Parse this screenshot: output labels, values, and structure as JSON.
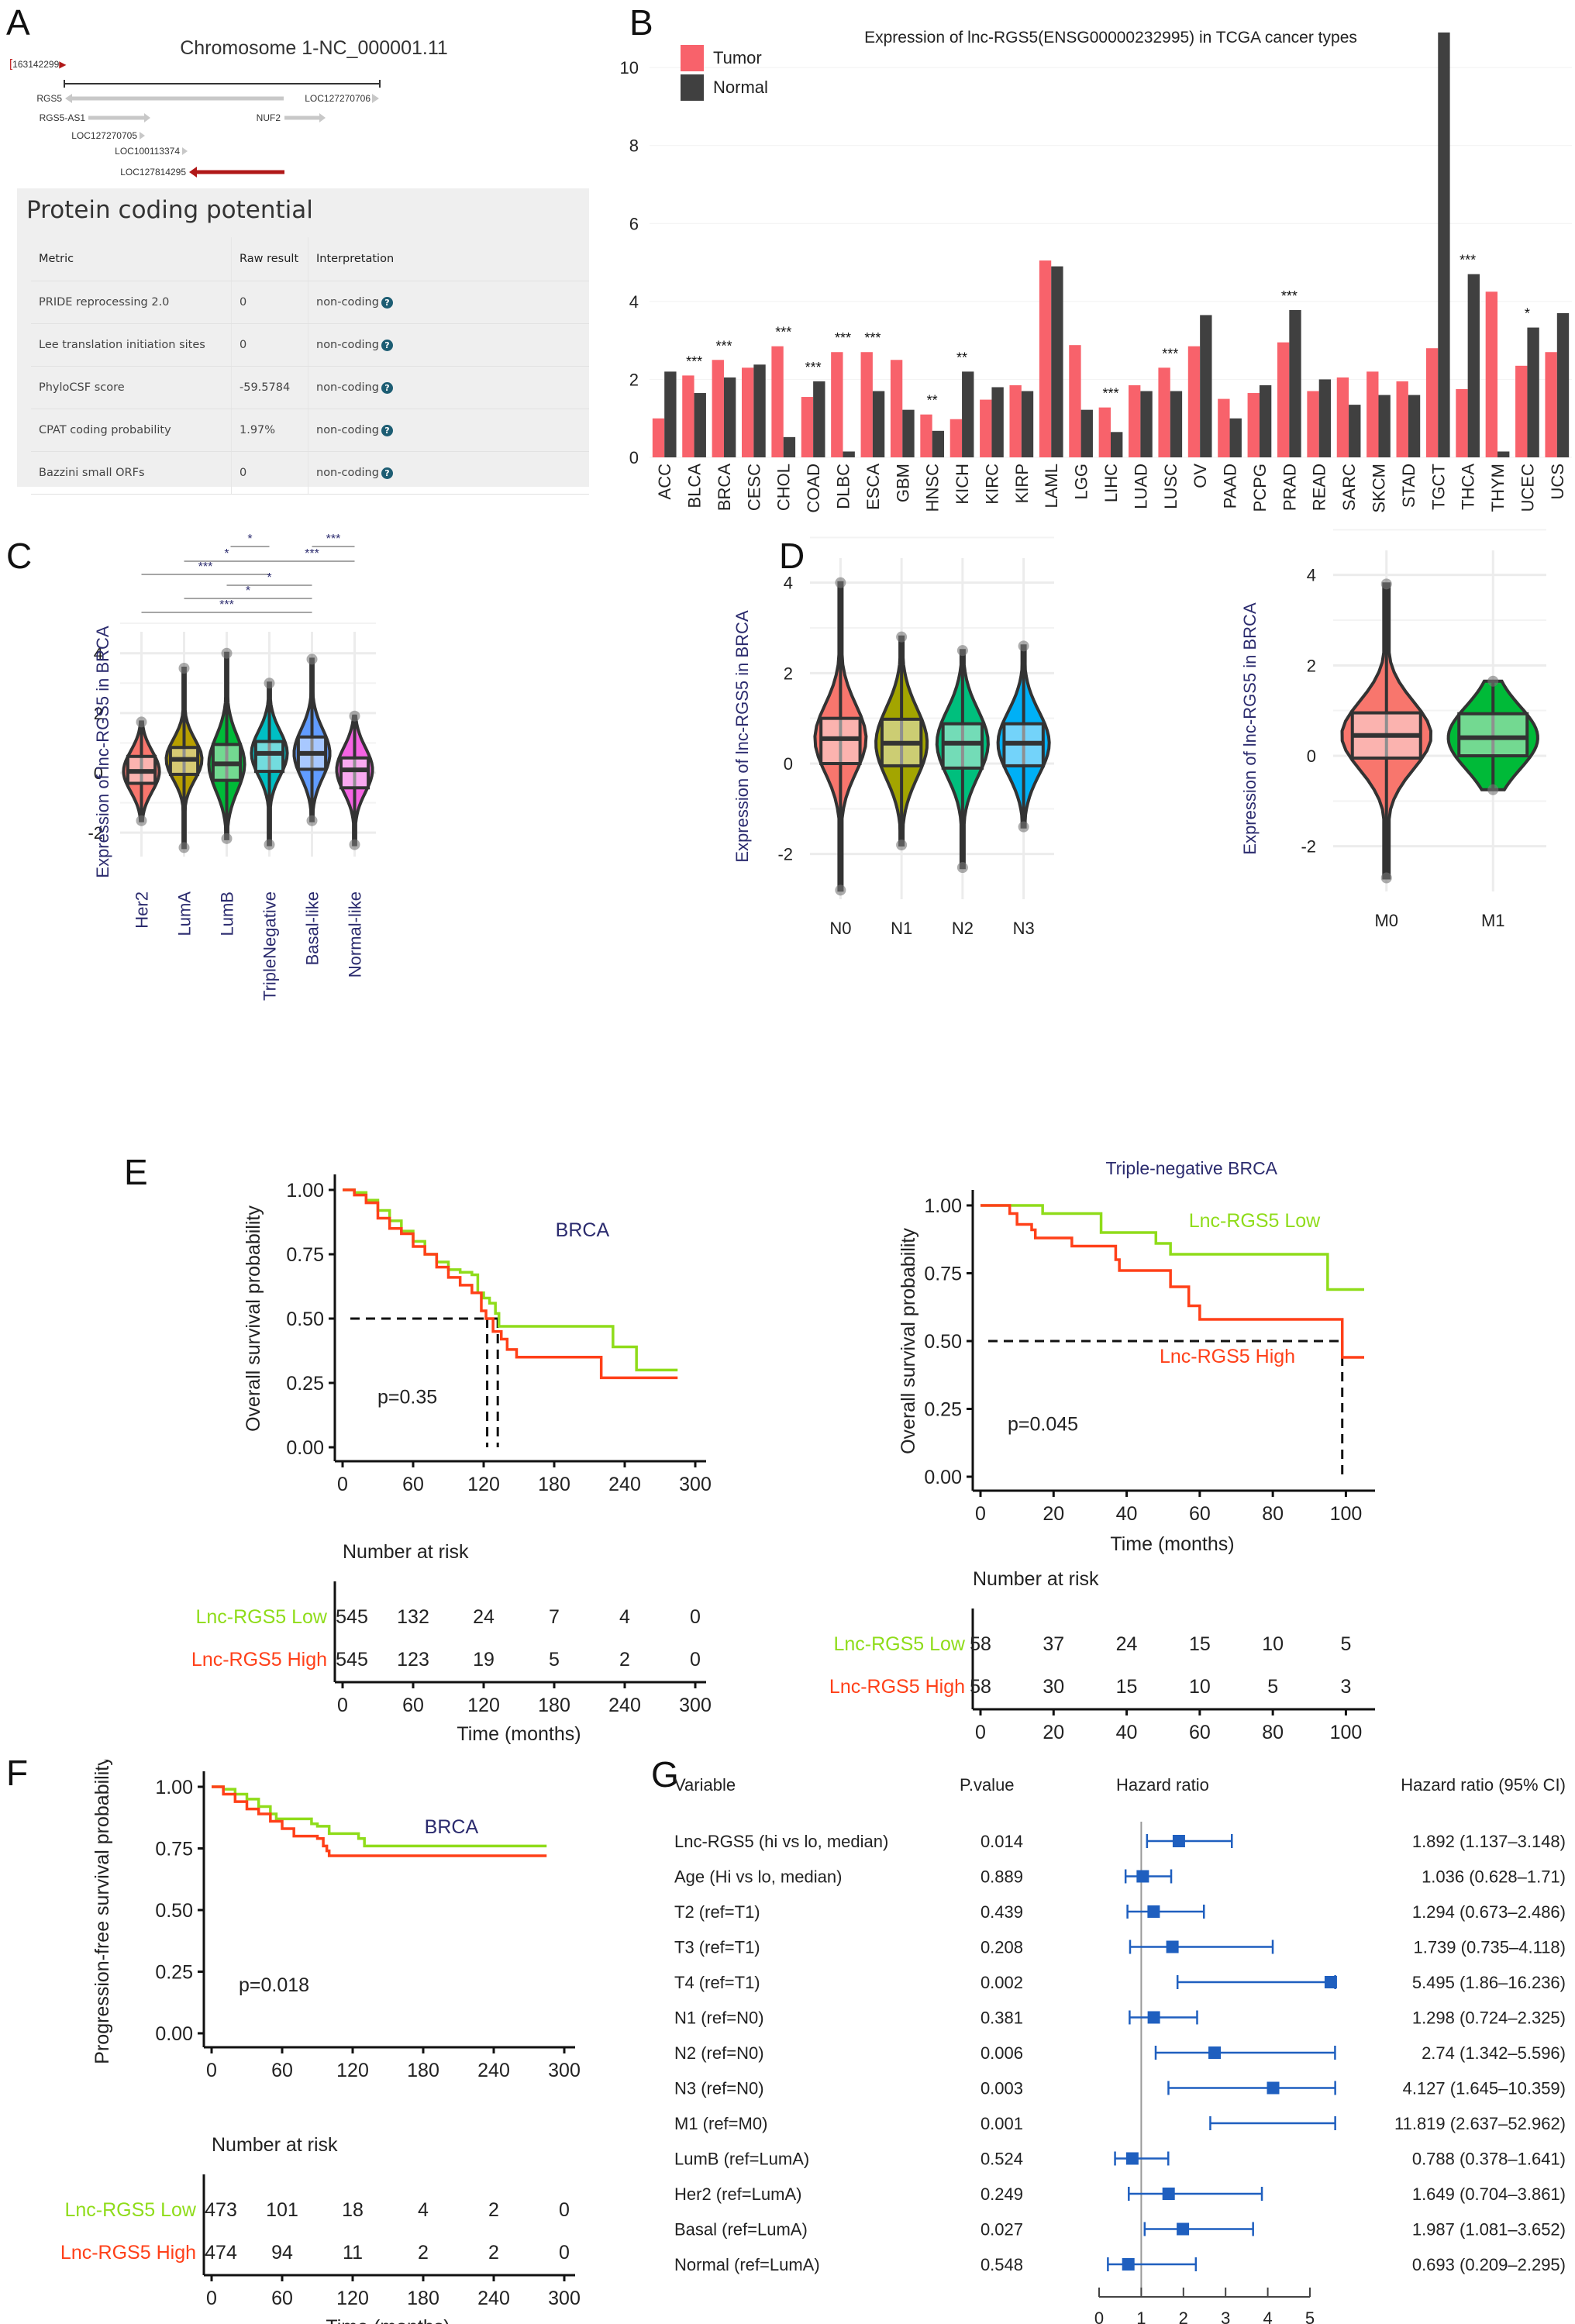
{
  "panels": {
    "A": {
      "letter": "A",
      "chromosome_title": "Chromosome 1-NC_000001.11",
      "start_coord": "163142299",
      "genes": [
        {
          "name": "RGS5",
          "strand": "-",
          "highlight": false
        },
        {
          "name": "LOC127270706",
          "strand": "+",
          "highlight": false
        },
        {
          "name": "RGS5-AS1",
          "strand": "+",
          "highlight": false
        },
        {
          "name": "NUF2",
          "strand": "+",
          "highlight": false
        },
        {
          "name": "LOC127270705",
          "strand": "+",
          "highlight": false
        },
        {
          "name": "LOC100113374",
          "strand": "+",
          "highlight": false
        },
        {
          "name": "LOC127814295",
          "strand": "-",
          "highlight": true
        }
      ],
      "table": {
        "title": "Protein coding potential",
        "headers": [
          "Metric",
          "Raw result",
          "Interpretation"
        ],
        "rows": [
          {
            "metric": "PRIDE reprocessing 2.0",
            "raw": "0",
            "interp": "non-coding"
          },
          {
            "metric": "Lee translation initiation sites",
            "raw": "0",
            "interp": "non-coding"
          },
          {
            "metric": "PhyloCSF score",
            "raw": "-59.5784",
            "interp": "non-coding"
          },
          {
            "metric": "CPAT coding probability",
            "raw": "1.97%",
            "interp": "non-coding"
          },
          {
            "metric": "Bazzini small ORFs",
            "raw": "0",
            "interp": "non-coding"
          }
        ],
        "help_icon": "?"
      }
    },
    "B": {
      "letter": "B"
    },
    "C": {
      "letter": "C"
    },
    "D": {
      "letter": "D"
    },
    "E": {
      "letter": "E"
    },
    "F": {
      "letter": "F"
    },
    "G": {
      "letter": "G"
    }
  },
  "colors": {
    "tumor": "#f8626b",
    "normal": "#404040",
    "km_low": "#8fdc1a",
    "km_high": "#ff4019",
    "title_blue": "#2b2b6e",
    "forest_blue": "#1f5fbf",
    "gene_red": "#b01818"
  },
  "chart_data": [
    {
      "id": "B",
      "type": "bar",
      "title": "Expression of lnc-RGS5(ENSG00000232995) in TCGA cancer types",
      "xlabel": "",
      "ylabel": "",
      "ylim": [
        0,
        10.5
      ],
      "yticks": [
        0,
        2,
        4,
        6,
        8,
        10
      ],
      "legend": {
        "position": "top-left",
        "entries": [
          "Tumor",
          "Normal"
        ]
      },
      "categories": [
        "ACC",
        "BLCA",
        "BRCA",
        "CESC",
        "CHOL",
        "COAD",
        "DLBC",
        "ESCA",
        "GBM",
        "HNSC",
        "KICH",
        "KIRC",
        "KIRP",
        "LAML",
        "LGG",
        "LIHC",
        "LUAD",
        "LUSC",
        "OV",
        "PAAD",
        "PCPG",
        "PRAD",
        "READ",
        "SARC",
        "SKCM",
        "STAD",
        "TGCT",
        "THCA",
        "THYM",
        "UCEC",
        "UCS"
      ],
      "series": [
        {
          "name": "Tumor",
          "values": [
            1.0,
            2.1,
            2.5,
            2.3,
            2.85,
            1.55,
            2.7,
            2.7,
            2.5,
            1.1,
            0.98,
            1.48,
            1.85,
            5.05,
            2.88,
            1.28,
            1.85,
            2.3,
            2.85,
            1.5,
            1.65,
            2.95,
            1.7,
            2.05,
            2.2,
            1.95,
            2.8,
            1.75,
            4.25,
            2.35,
            2.7
          ]
        },
        {
          "name": "Normal",
          "values": [
            2.2,
            1.65,
            2.05,
            2.38,
            0.52,
            1.95,
            0.15,
            1.7,
            1.22,
            0.68,
            2.2,
            1.8,
            1.7,
            4.9,
            1.22,
            0.65,
            1.7,
            1.7,
            3.65,
            1.0,
            1.85,
            3.78,
            2.0,
            1.35,
            1.6,
            1.6,
            10.9,
            4.7,
            0.15,
            3.33,
            3.7
          ]
        }
      ],
      "significance": [
        "",
        "***",
        "***",
        "",
        "***",
        "***",
        "***",
        "***",
        "",
        "**",
        "**",
        "",
        "",
        "",
        "",
        "***",
        "",
        "***",
        "",
        "",
        "",
        "***",
        "",
        "",
        "",
        "",
        "",
        "***",
        "",
        "*",
        ""
      ]
    },
    {
      "id": "C",
      "type": "violin",
      "ylabel": "Expression of lnc-RGS5 in BRCA",
      "ylim": [
        -2.8,
        4.2
      ],
      "yticks": [
        -2,
        0,
        2,
        4
      ],
      "categories": [
        "Her2",
        "LumA",
        "LumB",
        "TripleNegative",
        "Basal-like",
        "Normal-like"
      ],
      "colors": [
        "#f8766d",
        "#b79f00",
        "#00ba38",
        "#00bfc4",
        "#619cff",
        "#f564e3"
      ],
      "box": [
        {
          "q1": -0.35,
          "median": 0.05,
          "q3": 0.55,
          "min": -1.6,
          "max": 1.7
        },
        {
          "q1": -0.05,
          "median": 0.45,
          "q3": 0.85,
          "min": -2.5,
          "max": 3.5
        },
        {
          "q1": -0.25,
          "median": 0.3,
          "q3": 0.95,
          "min": -2.2,
          "max": 4.0
        },
        {
          "q1": 0.05,
          "median": 0.65,
          "q3": 1.05,
          "min": -2.4,
          "max": 3.0
        },
        {
          "q1": 0.12,
          "median": 0.65,
          "q3": 1.2,
          "min": -1.6,
          "max": 3.8
        },
        {
          "q1": -0.5,
          "median": 0.1,
          "q3": 0.5,
          "min": -2.4,
          "max": 1.9
        }
      ],
      "comparisons": [
        {
          "from": "TripleNegative",
          "to": "LumB",
          "label": "*",
          "note": "LumB–TripleNegative"
        },
        {
          "from": "LumA",
          "to": "TripleNegative",
          "label": "*"
        },
        {
          "from": "Her2",
          "to": "TripleNegative",
          "label": "***"
        },
        {
          "from": "LumB",
          "to": "Basal-like",
          "label": "*"
        },
        {
          "from": "LumA",
          "to": "Basal-like",
          "label": "*"
        },
        {
          "from": "Her2",
          "to": "Basal-like",
          "label": "***"
        },
        {
          "from": "Basal-like",
          "to": "Normal-like",
          "label": "***"
        },
        {
          "from": "TripleNegative",
          "to": "Normal-like",
          "label": "***"
        }
      ]
    },
    {
      "id": "D-N",
      "type": "violin",
      "ylabel": "Expression of lnc-RGS5 in BRCA",
      "ylim": [
        -3.0,
        4.2
      ],
      "yticks": [
        -2,
        0,
        2,
        4
      ],
      "categories": [
        "N0",
        "N1",
        "N2",
        "N3"
      ],
      "colors": [
        "#f8766d",
        "#a3a500",
        "#00bf7d",
        "#00b0f6"
      ],
      "box": [
        {
          "q1": 0.0,
          "median": 0.55,
          "q3": 1.0,
          "min": -2.8,
          "max": 4.0
        },
        {
          "q1": -0.05,
          "median": 0.45,
          "q3": 0.98,
          "min": -1.8,
          "max": 2.8
        },
        {
          "q1": -0.1,
          "median": 0.45,
          "q3": 0.88,
          "min": -2.3,
          "max": 2.5
        },
        {
          "q1": -0.05,
          "median": 0.45,
          "q3": 0.88,
          "min": -1.4,
          "max": 2.6
        }
      ]
    },
    {
      "id": "D-M",
      "type": "violin",
      "ylabel": "Expression of lnc-RGS5 in BRCA",
      "ylim": [
        -3.0,
        4.2
      ],
      "yticks": [
        -2,
        0,
        2,
        4
      ],
      "categories": [
        "M0",
        "M1"
      ],
      "colors": [
        "#f8766d",
        "#00ba38"
      ],
      "box": [
        {
          "q1": -0.05,
          "median": 0.45,
          "q3": 0.95,
          "min": -2.7,
          "max": 3.8
        },
        {
          "q1": 0.0,
          "median": 0.4,
          "q3": 0.93,
          "min": -0.75,
          "max": 1.65
        }
      ]
    },
    {
      "id": "E-left",
      "type": "line",
      "subtitle": "BRCA",
      "ylabel": "Overall survival probability",
      "xlabel": "Time (months)",
      "ylim": [
        0,
        1
      ],
      "xlim": [
        0,
        300
      ],
      "yticks": [
        "0.00",
        "0.25",
        "0.50",
        "0.75",
        "1.00"
      ],
      "xticks": [
        0,
        60,
        120,
        180,
        240,
        300
      ],
      "pvalue": "p=0.35",
      "median_survival": {
        "high": 123,
        "low": 132
      },
      "series": [
        {
          "name": "Lnc-RGS5 Low",
          "x": [
            0,
            10,
            20,
            30,
            40,
            50,
            60,
            70,
            80,
            90,
            100,
            110,
            115,
            120,
            125,
            130,
            133,
            200,
            215,
            230,
            250,
            285
          ],
          "y": [
            1.0,
            0.99,
            0.96,
            0.92,
            0.88,
            0.84,
            0.8,
            0.75,
            0.72,
            0.69,
            0.68,
            0.67,
            0.6,
            0.58,
            0.56,
            0.52,
            0.47,
            0.47,
            0.47,
            0.39,
            0.3,
            0.3
          ]
        },
        {
          "name": "Lnc-RGS5 High",
          "x": [
            0,
            10,
            20,
            30,
            40,
            50,
            60,
            70,
            80,
            90,
            100,
            110,
            118,
            122,
            128,
            135,
            140,
            148,
            200,
            218,
            220,
            285
          ],
          "y": [
            1.0,
            0.98,
            0.95,
            0.89,
            0.85,
            0.83,
            0.78,
            0.75,
            0.7,
            0.66,
            0.63,
            0.6,
            0.53,
            0.5,
            0.45,
            0.42,
            0.38,
            0.35,
            0.35,
            0.35,
            0.27,
            0.27
          ]
        }
      ],
      "risk_table": {
        "title": "Number at risk",
        "times": [
          0,
          60,
          120,
          180,
          240,
          300
        ],
        "rows": [
          {
            "label": "Lnc-RGS5 Low",
            "values": [
              545,
              132,
              24,
              7,
              4,
              0
            ]
          },
          {
            "label": "Lnc-RGS5 High",
            "values": [
              545,
              123,
              19,
              5,
              2,
              0
            ]
          }
        ]
      }
    },
    {
      "id": "E-right",
      "type": "line",
      "title": "Triple-negative BRCA",
      "ylabel": "Overall survival probability",
      "xlabel": "Time (months)",
      "ylim": [
        0,
        1
      ],
      "xlim": [
        0,
        105
      ],
      "yticks": [
        "0.00",
        "0.25",
        "0.50",
        "0.75",
        "1.00"
      ],
      "xticks": [
        0,
        20,
        40,
        60,
        80,
        100
      ],
      "pvalue": "p=0.045",
      "median_survival": {
        "high": 99
      },
      "series": [
        {
          "name": "Lnc-RGS5 Low",
          "x": [
            0,
            17,
            17,
            33,
            33,
            48,
            48,
            52,
            52,
            95,
            95,
            105
          ],
          "y": [
            1.0,
            1.0,
            0.97,
            0.97,
            0.9,
            0.9,
            0.86,
            0.86,
            0.82,
            0.82,
            0.69,
            0.69
          ]
        },
        {
          "name": "Lnc-RGS5 High",
          "x": [
            0,
            8,
            8,
            10,
            10,
            14,
            14,
            15,
            15,
            25,
            25,
            37,
            37,
            38,
            38,
            52,
            52,
            57,
            57,
            60,
            60,
            99,
            99,
            105
          ],
          "y": [
            1.0,
            1.0,
            0.97,
            0.97,
            0.93,
            0.93,
            0.91,
            0.91,
            0.88,
            0.88,
            0.85,
            0.85,
            0.8,
            0.8,
            0.76,
            0.76,
            0.7,
            0.7,
            0.63,
            0.63,
            0.58,
            0.58,
            0.44,
            0.44
          ]
        }
      ],
      "risk_table": {
        "title": "Number at risk",
        "times": [
          0,
          20,
          40,
          60,
          80,
          100
        ],
        "rows": [
          {
            "label": "Lnc-RGS5 Low",
            "values": [
              58,
              37,
              24,
              15,
              10,
              5
            ]
          },
          {
            "label": "Lnc-RGS5 High",
            "values": [
              58,
              30,
              15,
              10,
              5,
              3
            ]
          }
        ]
      }
    },
    {
      "id": "F",
      "type": "line",
      "subtitle": "BRCA",
      "ylabel": "Progression-free survival probability",
      "xlabel": "Time (months)",
      "ylim": [
        0,
        1
      ],
      "xlim": [
        0,
        300
      ],
      "yticks": [
        "0.00",
        "0.25",
        "0.50",
        "0.75",
        "1.00"
      ],
      "xticks": [
        0,
        60,
        120,
        180,
        240,
        300
      ],
      "pvalue": "p=0.018",
      "series": [
        {
          "name": "Lnc-RGS5 Low",
          "x": [
            0,
            10,
            20,
            30,
            40,
            50,
            55,
            60,
            80,
            85,
            90,
            100,
            120,
            125,
            130,
            285
          ],
          "y": [
            1.0,
            0.99,
            0.97,
            0.95,
            0.92,
            0.89,
            0.87,
            0.87,
            0.87,
            0.85,
            0.84,
            0.81,
            0.81,
            0.79,
            0.76,
            0.76
          ]
        },
        {
          "name": "Lnc-RGS5 High",
          "x": [
            0,
            10,
            20,
            30,
            40,
            50,
            60,
            70,
            80,
            90,
            95,
            98,
            100,
            285
          ],
          "y": [
            1.0,
            0.97,
            0.94,
            0.91,
            0.89,
            0.86,
            0.83,
            0.8,
            0.8,
            0.79,
            0.76,
            0.74,
            0.72,
            0.72
          ]
        }
      ],
      "risk_table": {
        "title": "Number at risk",
        "times": [
          0,
          60,
          120,
          180,
          240,
          300
        ],
        "rows": [
          {
            "label": "Lnc-RGS5 Low",
            "values": [
              473,
              101,
              18,
              4,
              2,
              0
            ]
          },
          {
            "label": "Lnc-RGS5 High",
            "values": [
              474,
              94,
              11,
              2,
              2,
              0
            ]
          }
        ]
      }
    },
    {
      "id": "G",
      "type": "forest",
      "headers": {
        "variable": "Variable",
        "pvalue": "P.value",
        "plot": "Hazard ratio",
        "ci": "Hazard ratio (95% CI)"
      },
      "xlim": [
        0,
        5
      ],
      "xticks": [
        0,
        1,
        2,
        3,
        4,
        5
      ],
      "reference": 1,
      "rows": [
        {
          "variable": "Lnc-RGS5 (hi vs lo, median)",
          "p": "0.014",
          "hr": 1.892,
          "lo": 1.137,
          "hi": 3.148,
          "ci_text": "1.892 (1.137–3.148)"
        },
        {
          "variable": "Age (Hi vs lo, median)",
          "p": "0.889",
          "hr": 1.036,
          "lo": 0.628,
          "hi": 1.71,
          "ci_text": "1.036 (0.628–1.71)"
        },
        {
          "variable": "T2 (ref=T1)",
          "p": "0.439",
          "hr": 1.294,
          "lo": 0.673,
          "hi": 2.486,
          "ci_text": "1.294 (0.673–2.486)"
        },
        {
          "variable": "T3 (ref=T1)",
          "p": "0.208",
          "hr": 1.739,
          "lo": 0.735,
          "hi": 4.118,
          "ci_text": "1.739 (0.735–4.118)"
        },
        {
          "variable": "T4 (ref=T1)",
          "p": "0.002",
          "hr": 5.495,
          "lo": 1.86,
          "hi": 16.236,
          "ci_text": "5.495 (1.86–16.236)"
        },
        {
          "variable": "N1 (ref=N0)",
          "p": "0.381",
          "hr": 1.298,
          "lo": 0.724,
          "hi": 2.325,
          "ci_text": "1.298 (0.724–2.325)"
        },
        {
          "variable": "N2 (ref=N0)",
          "p": "0.006",
          "hr": 2.74,
          "lo": 1.342,
          "hi": 5.596,
          "ci_text": "2.74 (1.342–5.596)"
        },
        {
          "variable": "N3 (ref=N0)",
          "p": "0.003",
          "hr": 4.127,
          "lo": 1.645,
          "hi": 10.359,
          "ci_text": "4.127 (1.645–10.359)"
        },
        {
          "variable": "M1 (ref=M0)",
          "p": "0.001",
          "hr": 11.819,
          "lo": 2.637,
          "hi": 52.962,
          "ci_text": "11.819 (2.637–52.962)"
        },
        {
          "variable": "LumB (ref=LumA)",
          "p": "0.524",
          "hr": 0.788,
          "lo": 0.378,
          "hi": 1.641,
          "ci_text": "0.788 (0.378–1.641)"
        },
        {
          "variable": "Her2 (ref=LumA)",
          "p": "0.249",
          "hr": 1.649,
          "lo": 0.704,
          "hi": 3.861,
          "ci_text": "1.649 (0.704–3.861)"
        },
        {
          "variable": "Basal (ref=LumA)",
          "p": "0.027",
          "hr": 1.987,
          "lo": 1.081,
          "hi": 3.652,
          "ci_text": "1.987 (1.081–3.652)"
        },
        {
          "variable": "Normal (ref=LumA)",
          "p": "0.548",
          "hr": 0.693,
          "lo": 0.209,
          "hi": 2.295,
          "ci_text": "0.693 (0.209–2.295)"
        }
      ]
    }
  ]
}
